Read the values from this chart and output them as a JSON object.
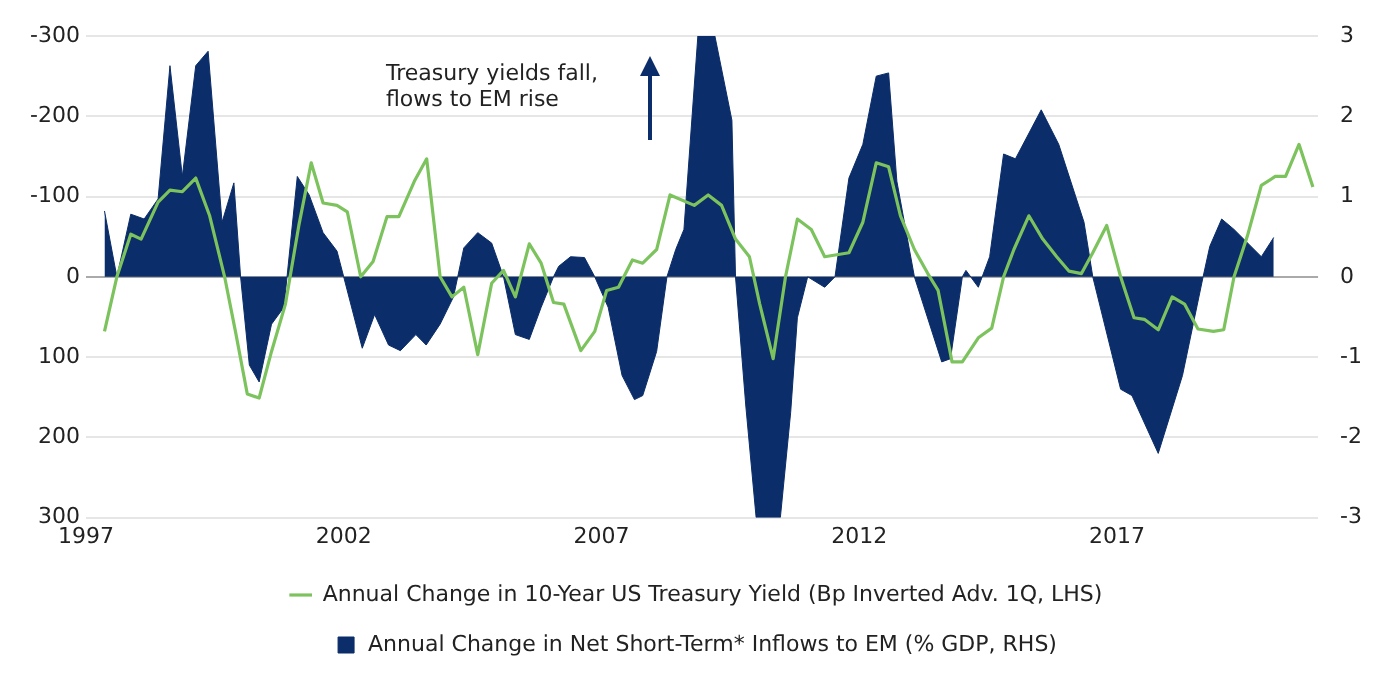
{
  "chart_data": {
    "type": "area",
    "annotations": [
      "Treasury yields fall, flows to EM rise"
    ],
    "xlim": [
      1997,
      2020.9
    ],
    "xticks": [
      1997,
      2002,
      2007,
      2012,
      2017
    ],
    "ylim": [
      300,
      -300
    ],
    "yticks": [
      -300,
      -200,
      -100,
      0,
      100,
      200,
      300
    ],
    "y2lim": [
      -3,
      3
    ],
    "y2ticks": [
      -3,
      -2,
      -1,
      0,
      1,
      2,
      3
    ],
    "grid": "y",
    "legend": "bottom",
    "series": [
      {
        "name": "Annual Change in Net Short-Term* Inflows to EM (% GDP, RHS)",
        "axis": "y2",
        "color": "#0b2d69",
        "x": [
          1997.36,
          1997.6,
          1997.87,
          1998.13,
          1998.4,
          1998.63,
          1998.87,
          1999.13,
          1999.37,
          1999.64,
          1999.87,
          2000.0,
          2000.17,
          2000.36,
          2000.6,
          2000.84,
          2001.1,
          2001.33,
          2001.6,
          2001.87,
          2002.0,
          2002.36,
          2002.6,
          2002.87,
          2003.1,
          2003.4,
          2003.6,
          2003.87,
          2004.13,
          2004.33,
          2004.6,
          2004.87,
          2005.1,
          2005.33,
          2005.6,
          2005.83,
          2006.07,
          2006.17,
          2006.4,
          2006.67,
          2006.87,
          2007.13,
          2007.4,
          2007.64,
          2007.8,
          2008.07,
          2008.27,
          2008.44,
          2008.6,
          2008.87,
          2009.2,
          2009.53,
          2009.6,
          2009.8,
          2010.0,
          2010.47,
          2010.67,
          2010.8,
          2011.0,
          2011.33,
          2011.53,
          2011.8,
          2012.07,
          2012.33,
          2012.57,
          2012.73,
          2013.07,
          2013.6,
          2013.77,
          2014.0,
          2014.07,
          2014.31,
          2014.53,
          2014.8,
          2015.03,
          2015.53,
          2015.87,
          2016.36,
          2016.53,
          2017.07,
          2017.29,
          2017.8,
          2018.27,
          2018.67,
          2018.8,
          2019.03,
          2019.27,
          2019.8,
          2020.04
        ],
        "values": [
          0.82,
          0,
          0.78,
          0.72,
          0.97,
          2.63,
          1.25,
          2.63,
          2.81,
          0.68,
          1.17,
          0,
          -1.1,
          -1.31,
          -0.59,
          -0.38,
          1.25,
          1.02,
          0.55,
          0.32,
          0,
          -0.89,
          -0.47,
          -0.85,
          -0.92,
          -0.72,
          -0.85,
          -0.59,
          -0.25,
          0.36,
          0.55,
          0.42,
          0,
          -0.72,
          -0.78,
          -0.38,
          0,
          0.13,
          0.25,
          0.24,
          0,
          -0.38,
          -1.23,
          -1.53,
          -1.48,
          -0.93,
          0,
          0.34,
          0.59,
          3.0,
          3.0,
          1.95,
          0,
          -1.61,
          -3.0,
          -3.0,
          -1.69,
          -0.51,
          0,
          -0.13,
          0,
          1.23,
          1.65,
          2.5,
          2.54,
          1.19,
          0,
          -1.06,
          -1.02,
          0,
          0.08,
          -0.13,
          0.25,
          1.53,
          1.47,
          2.08,
          1.65,
          0.68,
          0,
          -1.4,
          -1.48,
          -2.2,
          -1.23,
          0,
          0.38,
          0.72,
          0.59,
          0.25,
          0.49
        ]
      },
      {
        "name": "Annual Change in 10-Year US Treasury Yield (Bp Inverted Adv. 1Q, LHS)",
        "type": "line",
        "color": "#7cc35e",
        "x": [
          1997.36,
          1997.6,
          1997.87,
          1998.07,
          1998.4,
          1998.63,
          1998.87,
          1999.13,
          1999.4,
          1999.69,
          1999.9,
          2000.13,
          2000.36,
          2000.6,
          2000.87,
          2001.13,
          2001.37,
          2001.6,
          2001.87,
          2002.07,
          2002.33,
          2002.57,
          2002.84,
          2003.07,
          2003.37,
          2003.61,
          2003.87,
          2004.1,
          2004.33,
          2004.6,
          2004.87,
          2005.1,
          2005.33,
          2005.6,
          2005.83,
          2006.07,
          2006.27,
          2006.6,
          2006.87,
          2007.1,
          2007.33,
          2007.6,
          2007.8,
          2008.07,
          2008.33,
          2008.8,
          2009.07,
          2009.33,
          2009.6,
          2009.87,
          2010.07,
          2010.33,
          2010.57,
          2010.8,
          2011.07,
          2011.33,
          2011.8,
          2012.07,
          2012.33,
          2012.57,
          2012.8,
          2013.07,
          2013.33,
          2013.53,
          2013.8,
          2014.0,
          2014.31,
          2014.57,
          2014.8,
          2015.0,
          2015.29,
          2015.56,
          2015.83,
          2016.07,
          2016.31,
          2016.53,
          2016.8,
          2017.07,
          2017.33,
          2017.53,
          2017.8,
          2018.07,
          2018.31,
          2018.57,
          2018.87,
          2019.07,
          2019.27,
          2019.53,
          2019.8,
          2020.07,
          2020.27,
          2020.53,
          2020.8
        ],
        "values": [
          68,
          0,
          -53,
          -47,
          -93,
          -108,
          -106,
          -123,
          -76,
          0,
          68,
          146,
          151,
          93,
          34,
          -64,
          -142,
          -92,
          -89,
          -81,
          0,
          -19,
          -75,
          -75,
          -119,
          -147,
          0,
          25,
          13,
          97,
          8,
          -8,
          25,
          -41,
          -17,
          32,
          34,
          92,
          68,
          17,
          13,
          -21,
          -17,
          -34,
          -102,
          -89,
          -102,
          -89,
          -47,
          -25,
          34,
          102,
          0,
          -72,
          -59,
          -25,
          -30,
          -68,
          -142,
          -137,
          -76,
          -34,
          -4,
          17,
          106,
          106,
          76,
          64,
          0,
          -34,
          -76,
          -47,
          -25,
          -7,
          -4,
          -30,
          -64,
          0,
          51,
          53,
          66,
          25,
          34,
          65,
          68,
          66,
          0,
          -51,
          -114,
          -125,
          -125,
          -165,
          -112
        ]
      }
    ]
  }
}
